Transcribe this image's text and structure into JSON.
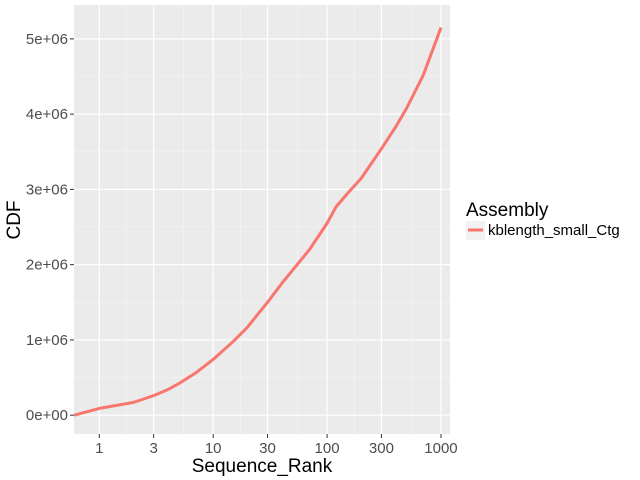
{
  "chart_data": {
    "type": "line",
    "title": "",
    "xlabel": "Sequence_Rank",
    "ylabel": "CDF",
    "x_scale": "log10",
    "xlim": [
      0.6,
      1200
    ],
    "ylim": [
      -250000,
      5450000
    ],
    "x_ticks": [
      1,
      3,
      10,
      30,
      100,
      300,
      1000
    ],
    "x_tick_labels": [
      "1",
      "3",
      "10",
      "30",
      "100",
      "300",
      "1000"
    ],
    "y_ticks": [
      0,
      1000000,
      2000000,
      3000000,
      4000000,
      5000000
    ],
    "y_tick_labels": [
      "0e+00",
      "1e+06",
      "2e+06",
      "3e+06",
      "4e+06",
      "5e+06"
    ],
    "grid": true,
    "legend": {
      "title": "Assembly",
      "position": "right"
    },
    "series": [
      {
        "name": "kblength_small_Ctg",
        "color": "#F8766D",
        "x": [
          0.6,
          1,
          2,
          3,
          4,
          5,
          7,
          10,
          15,
          20,
          30,
          40,
          50,
          70,
          100,
          120,
          150,
          200,
          300,
          400,
          500,
          700,
          1000
        ],
        "y": [
          0,
          90000,
          170000,
          260000,
          340000,
          420000,
          560000,
          740000,
          980000,
          1170000,
          1500000,
          1750000,
          1930000,
          2200000,
          2550000,
          2770000,
          2940000,
          3150000,
          3540000,
          3830000,
          4080000,
          4520000,
          5150000
        ]
      }
    ]
  }
}
